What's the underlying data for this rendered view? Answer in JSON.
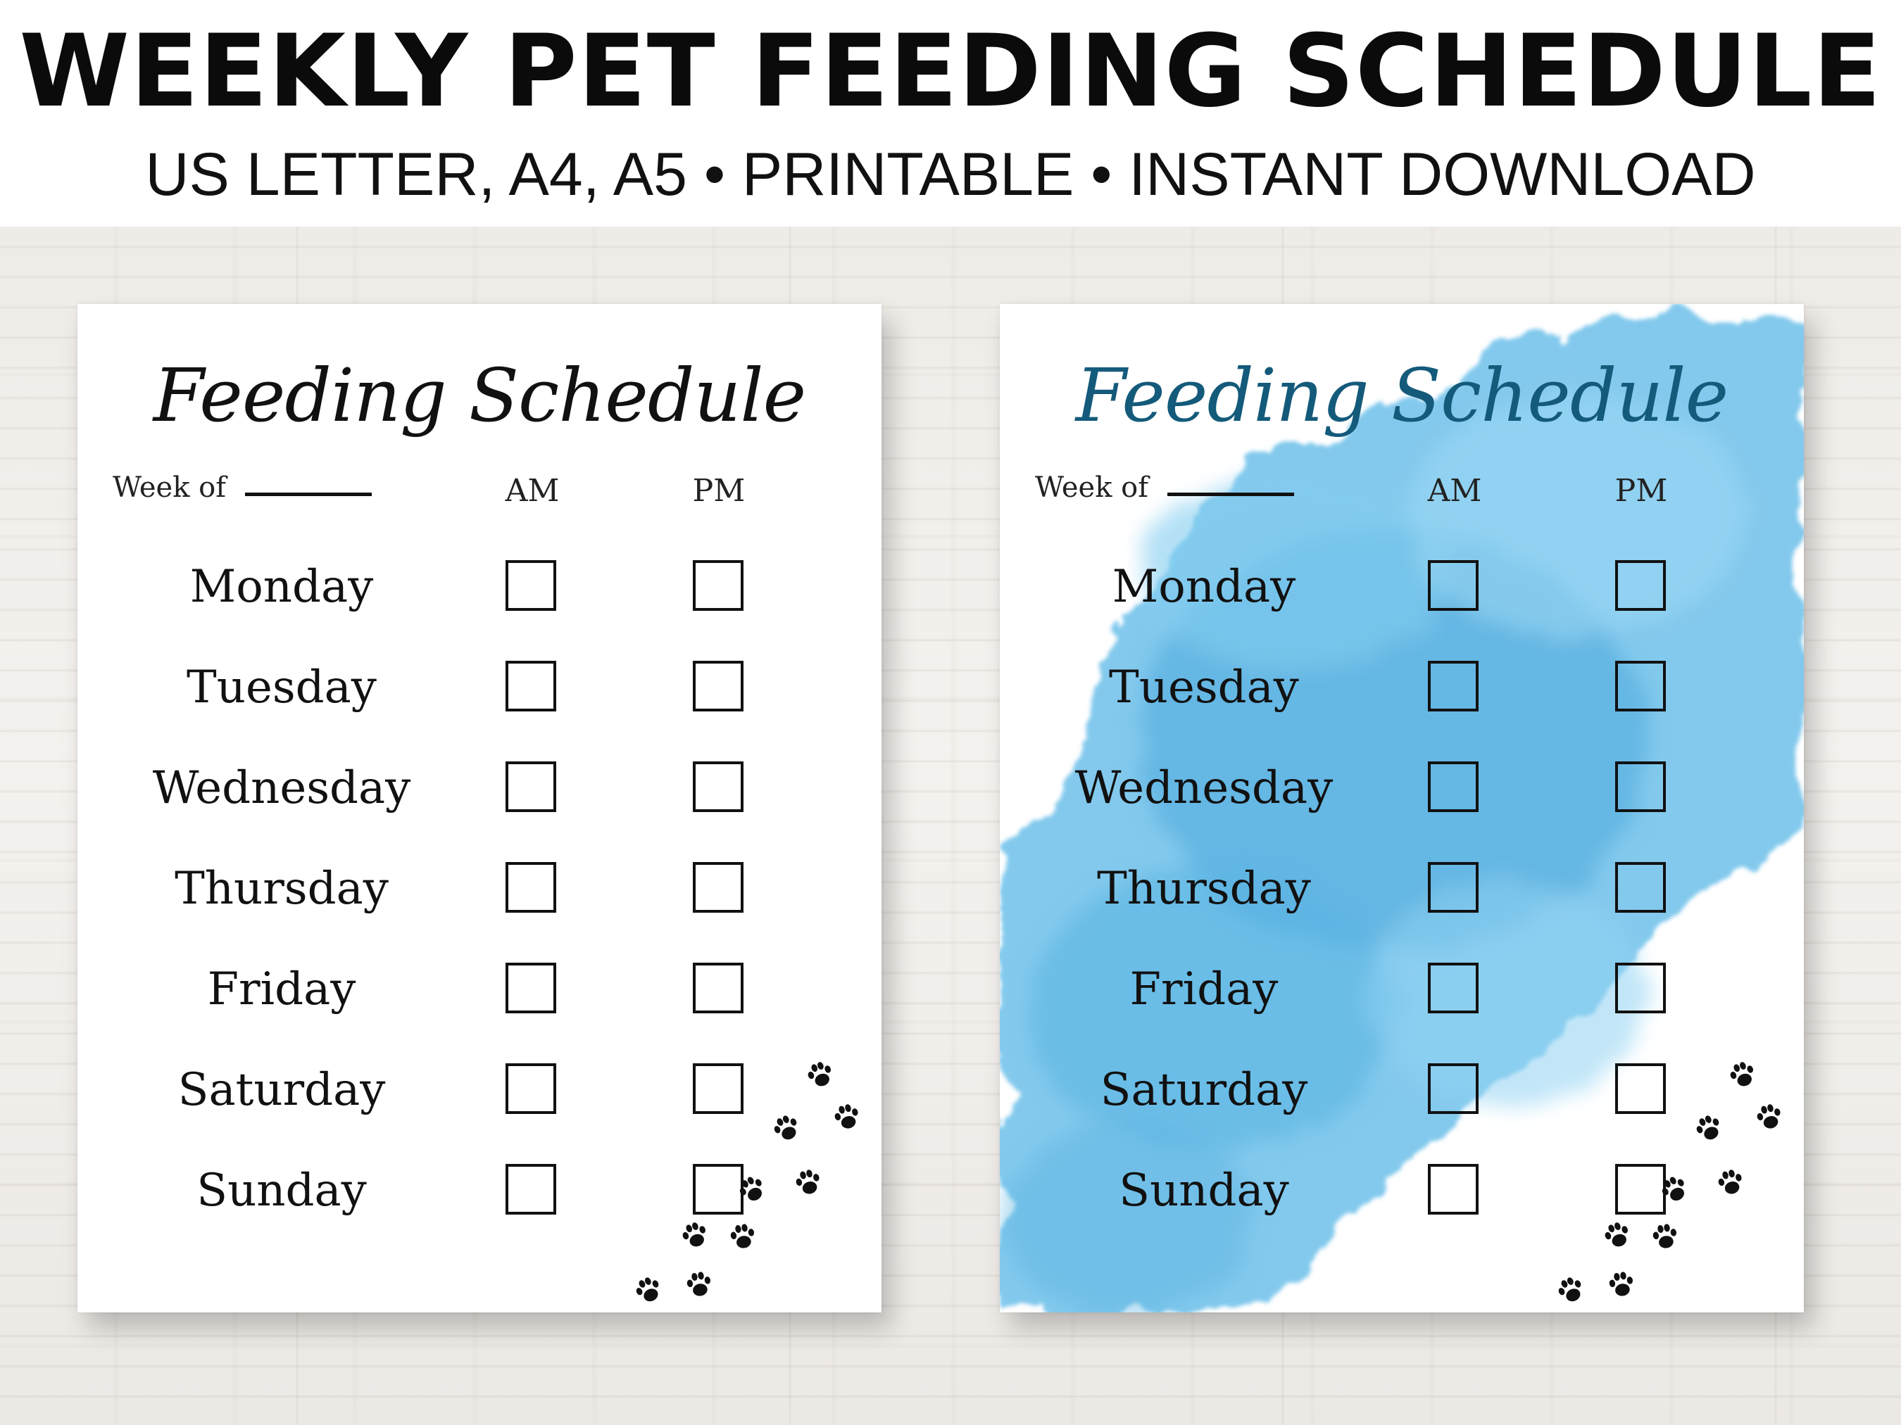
{
  "header": {
    "headline": "WEEKLY PET FEEDING SCHEDULE",
    "subline": "US LETTER, A4, A5 • PRINTABLE • INSTANT DOWNLOAD"
  },
  "sheets": [
    {
      "variant": "plain",
      "title": "Feeding Schedule",
      "title_color": "#111111",
      "week_label": "Week of",
      "col_am": "AM",
      "col_pm": "PM",
      "days": [
        "Monday",
        "Tuesday",
        "Wednesday",
        "Thursday",
        "Friday",
        "Saturday",
        "Sunday"
      ]
    },
    {
      "variant": "blue-watercolor",
      "title": "Feeding Schedule",
      "title_color": "#145a7a",
      "week_label": "Week of",
      "col_am": "AM",
      "col_pm": "PM",
      "days": [
        "Monday",
        "Tuesday",
        "Wednesday",
        "Thursday",
        "Friday",
        "Saturday",
        "Sunday"
      ]
    }
  ],
  "colors": {
    "watercolor": "#5cb6e4",
    "ink": "#111111"
  },
  "icons": [
    "paw-print-icon"
  ]
}
